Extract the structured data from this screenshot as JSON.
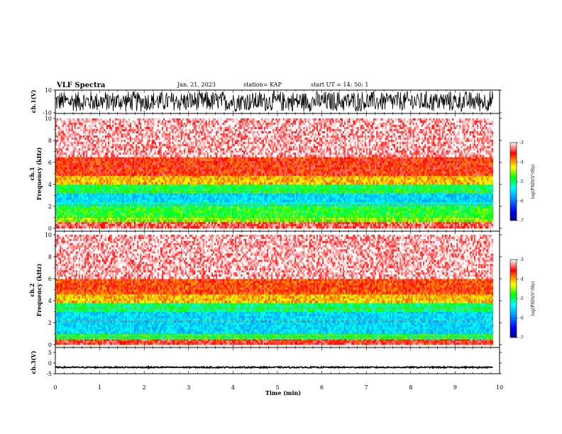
{
  "header": {
    "title": "VLF Spectra",
    "date": "Jan. 21, 2023",
    "station": "station= KAP",
    "start": "start UT = 14: 50: 1"
  },
  "chart_data": [
    {
      "id": "waveform-ch1",
      "type": "line",
      "ylabel": "ch.1(V)",
      "ylim": [
        -10,
        10
      ],
      "yticks": [
        -10,
        10
      ],
      "xlim": [
        0,
        10
      ],
      "data_extent_min": [
        0,
        9.85
      ],
      "description_values": {
        "approx_min_V": -10,
        "approx_max_V": 10
      }
    },
    {
      "id": "spectrogram-ch1",
      "type": "heatmap",
      "ylabel": "ch.1\nFrequency (kHz)",
      "ylim": [
        0,
        10
      ],
      "yticks": [
        0,
        2,
        4,
        6,
        8,
        10
      ],
      "xlim": [
        0,
        10
      ],
      "data_extent_min": [
        0,
        9.85
      ],
      "bands_kHz": [
        {
          "range": [
            0,
            0.6
          ],
          "log_psd": -3.4
        },
        {
          "range": [
            0.6,
            1.0
          ],
          "log_psd": -4.6
        },
        {
          "range": [
            1.0,
            2.0
          ],
          "log_psd": -4.8
        },
        {
          "range": [
            2.0,
            2.4
          ],
          "log_psd": -5.2
        },
        {
          "range": [
            2.4,
            3.2
          ],
          "log_psd": -5.5
        },
        {
          "range": [
            3.2,
            4.0
          ],
          "log_psd": -4.9
        },
        {
          "range": [
            4.0,
            4.8
          ],
          "log_psd": -4.1
        },
        {
          "range": [
            4.8,
            6.5
          ],
          "log_psd": -3.6
        },
        {
          "range": [
            6.5,
            10.0
          ],
          "log_psd": -3.15
        }
      ]
    },
    {
      "id": "spectrogram-ch2",
      "type": "heatmap",
      "ylabel": "ch.2\nFrequency (kHz)",
      "ylim": [
        0,
        10
      ],
      "yticks": [
        0,
        2,
        4,
        6,
        8,
        10
      ],
      "xlim": [
        0,
        10
      ],
      "data_extent_min": [
        0,
        9.85
      ],
      "bands_kHz": [
        {
          "range": [
            0,
            0.5
          ],
          "log_psd": -3.5
        },
        {
          "range": [
            0.5,
            1.0
          ],
          "log_psd": -4.9
        },
        {
          "range": [
            1.0,
            2.0
          ],
          "log_psd": -5.5
        },
        {
          "range": [
            2.0,
            3.0
          ],
          "log_psd": -5.5
        },
        {
          "range": [
            3.0,
            3.8
          ],
          "log_psd": -5.0
        },
        {
          "range": [
            3.8,
            4.6
          ],
          "log_psd": -4.1
        },
        {
          "range": [
            4.6,
            6.0
          ],
          "log_psd": -3.7
        },
        {
          "range": [
            6.0,
            10.0
          ],
          "log_psd": -3.15
        }
      ]
    },
    {
      "id": "waveform-ch3",
      "type": "line",
      "ylabel": "ch.3(V)",
      "ylim": [
        -5,
        5
      ],
      "yticks": [
        -5,
        0,
        5
      ],
      "xlim": [
        0,
        10
      ],
      "data_extent_min": [
        0,
        9.85
      ],
      "description_values": {
        "approx_level_V": -2
      }
    }
  ],
  "x_axis": {
    "label": "Time (min)",
    "ticks": [
      0,
      1,
      2,
      3,
      4,
      5,
      6,
      7,
      8,
      9,
      10
    ]
  },
  "colorbar": {
    "label": "log(PSD)(V²/Hz)",
    "range": [
      -7,
      -3
    ],
    "ticks": [
      "-3",
      "-4",
      "-5",
      "-6",
      "-7"
    ]
  },
  "colors": {
    "colormap": [
      "#000080",
      "#0000ff",
      "#00a0ff",
      "#00ffff",
      "#00ff00",
      "#ffff00",
      "#ff8000",
      "#ff0000",
      "#ffffff"
    ]
  }
}
